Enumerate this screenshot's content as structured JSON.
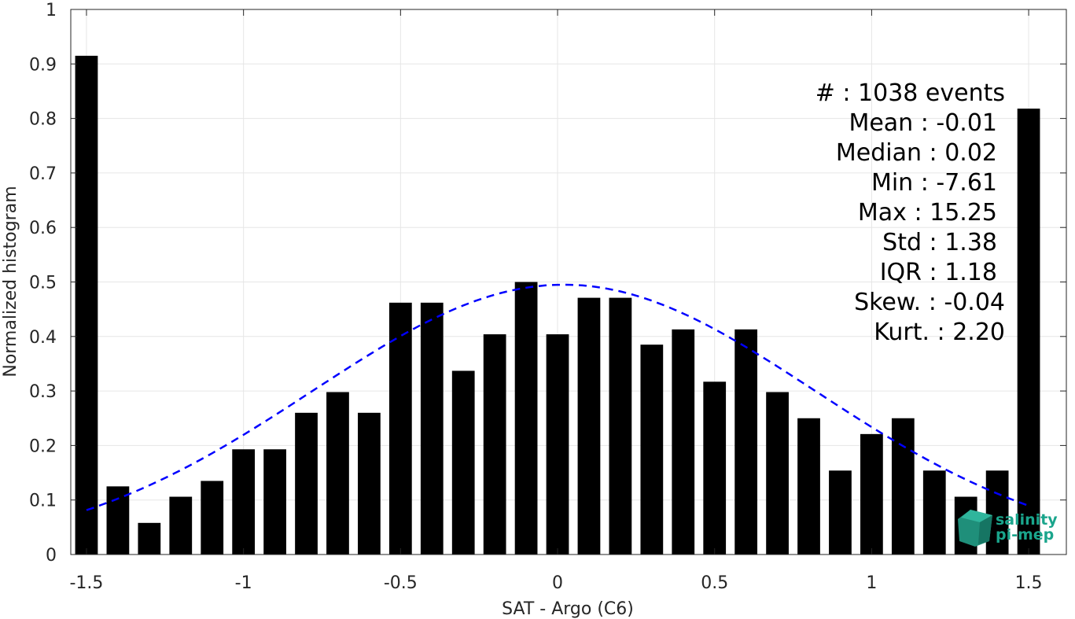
{
  "chart_data": {
    "type": "bar",
    "xlabel": "SAT - Argo (C6)",
    "ylabel": "Normalized histogram",
    "xlim": [
      -1.55,
      1.62
    ],
    "ylim": [
      0,
      1
    ],
    "grid": true,
    "bar_color": "#000000",
    "x": [
      -1.5,
      -1.4,
      -1.3,
      -1.2,
      -1.1,
      -1.0,
      -0.9,
      -0.8,
      -0.7,
      -0.6,
      -0.5,
      -0.4,
      -0.3,
      -0.2,
      -0.1,
      0.0,
      0.1,
      0.2,
      0.3,
      0.4,
      0.5,
      0.6,
      0.7,
      0.8,
      0.9,
      1.0,
      1.1,
      1.2,
      1.3,
      1.4,
      1.5
    ],
    "values": [
      0.915,
      0.125,
      0.058,
      0.106,
      0.135,
      0.193,
      0.193,
      0.26,
      0.298,
      0.26,
      0.462,
      0.462,
      0.337,
      0.404,
      0.5,
      0.404,
      0.471,
      0.471,
      0.385,
      0.413,
      0.317,
      0.413,
      0.298,
      0.25,
      0.154,
      0.221,
      0.25,
      0.154,
      0.106,
      0.154,
      0.818
    ],
    "xticks": [
      "-1.5",
      "-1",
      "-0.5",
      "0",
      "0.5",
      "1",
      "1.5"
    ],
    "xtick_values": [
      -1.5,
      -1,
      -0.5,
      0,
      0.5,
      1,
      1.5
    ],
    "yticks": [
      "0",
      "0.1",
      "0.2",
      "0.3",
      "0.4",
      "0.5",
      "0.6",
      "0.7",
      "0.8",
      "0.9",
      "1"
    ],
    "ytick_values": [
      0,
      0.1,
      0.2,
      0.3,
      0.4,
      0.5,
      0.6,
      0.7,
      0.8,
      0.9,
      1
    ],
    "fit_curve": {
      "style": "dashed",
      "color": "#0000ff",
      "mean": 0.02,
      "std": 0.8,
      "peak": 0.495,
      "x_range": [
        -1.5,
        1.5
      ]
    },
    "stats": [
      "#  : 1038 events",
      "Mean : -0.01",
      "Median : 0.02",
      "Min : -7.61",
      "Max : 15.25",
      "Std : 1.38",
      "IQR : 1.18",
      "Skew. : -0.04",
      "Kurt. : 2.20"
    ]
  },
  "logo": {
    "line1": "salinity",
    "line2": "pi-mep",
    "color": "#1aa58c"
  }
}
